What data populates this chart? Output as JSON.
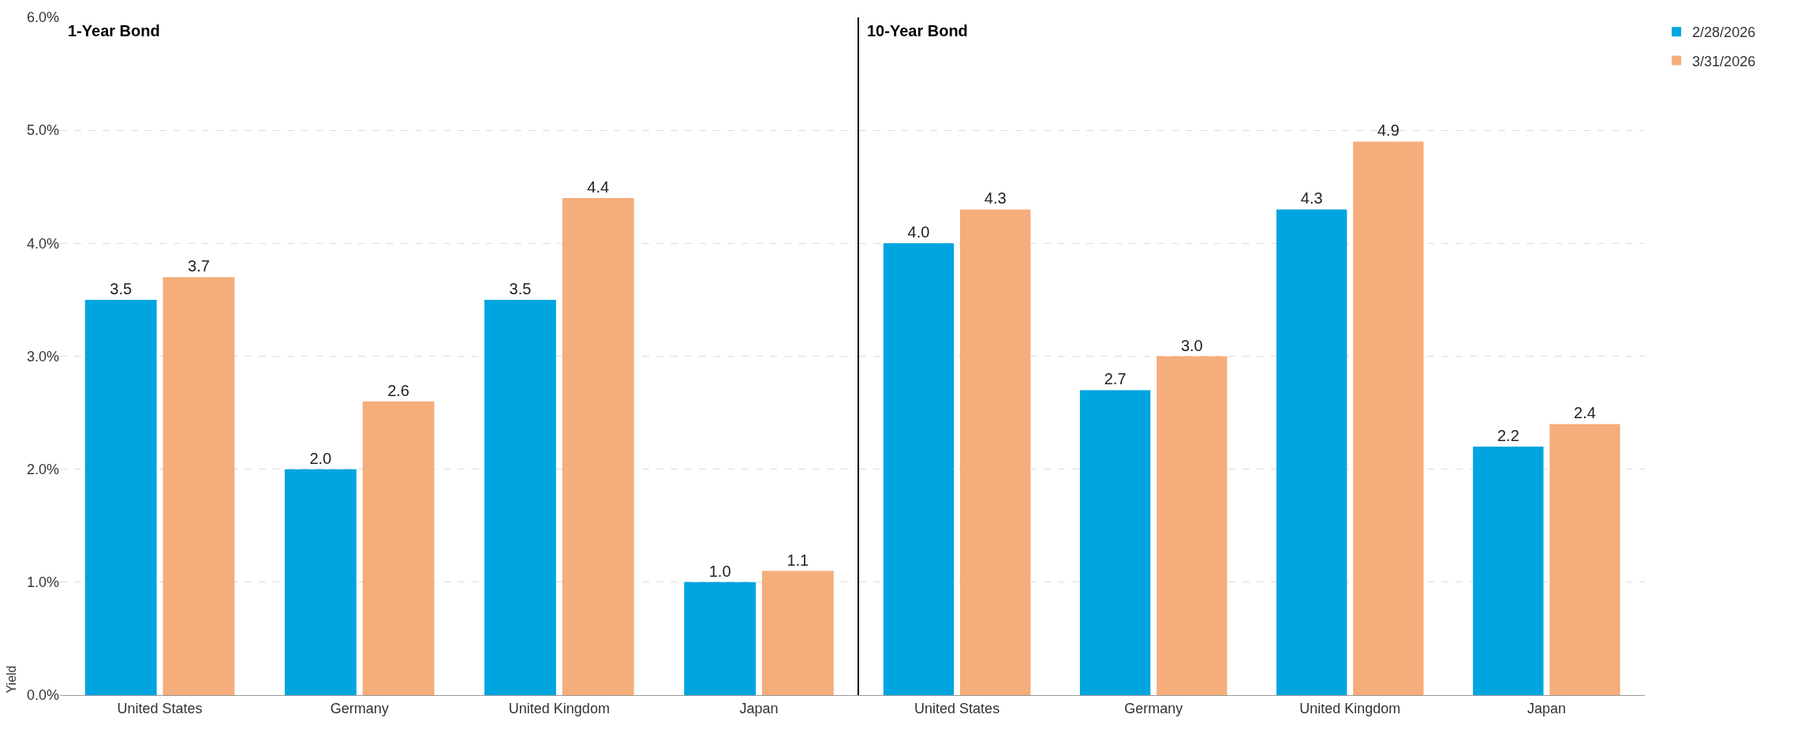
{
  "chart_data": [
    {
      "type": "bar",
      "title": "1-Year Bond",
      "ylabel": "Yield",
      "categories": [
        "United States",
        "Germany",
        "United Kingdom",
        "Japan"
      ],
      "series": [
        {
          "name": "2/28/2026",
          "color": "#00a5df",
          "values": [
            3.5,
            2.0,
            3.5,
            1.0
          ],
          "value_labels": [
            "3.5",
            "2.0",
            "3.5",
            "1.0"
          ]
        },
        {
          "name": "3/31/2026",
          "color": "#f5ad7b",
          "values": [
            3.7,
            2.6,
            4.4,
            1.1
          ],
          "value_labels": [
            "3.7",
            "2.6",
            "4.4",
            "1.1"
          ]
        }
      ],
      "ylim": [
        0,
        6
      ],
      "yticks": [
        {
          "value": 0,
          "label": "0.0%"
        },
        {
          "value": 1,
          "label": "1.0%"
        },
        {
          "value": 2,
          "label": "2.0%"
        },
        {
          "value": 3,
          "label": "3.0%"
        },
        {
          "value": 4,
          "label": "4.0%"
        },
        {
          "value": 5,
          "label": "5.0%"
        },
        {
          "value": 6,
          "label": "6.0%"
        }
      ],
      "grid": "y",
      "legend": "top right"
    },
    {
      "type": "bar",
      "title": "10-Year Bond",
      "categories": [
        "United States",
        "Germany",
        "United Kingdom",
        "Japan"
      ],
      "series": [
        {
          "color": "#00a5df",
          "values": [
            4.0,
            2.7,
            4.3,
            2.2
          ],
          "value_labels": [
            "4.0",
            "2.7",
            "4.3",
            "2.2"
          ]
        },
        {
          "color": "#f5ad7b",
          "values": [
            4.3,
            3.0,
            4.9,
            2.4
          ],
          "value_labels": [
            "4.3",
            "3.0",
            "4.9",
            "2.4"
          ]
        }
      ],
      "ylim": [
        0,
        6
      ],
      "yticks": [
        0,
        1,
        2,
        3,
        4,
        5,
        6
      ],
      "grid": "y",
      "tick_labels": "x"
    }
  ]
}
